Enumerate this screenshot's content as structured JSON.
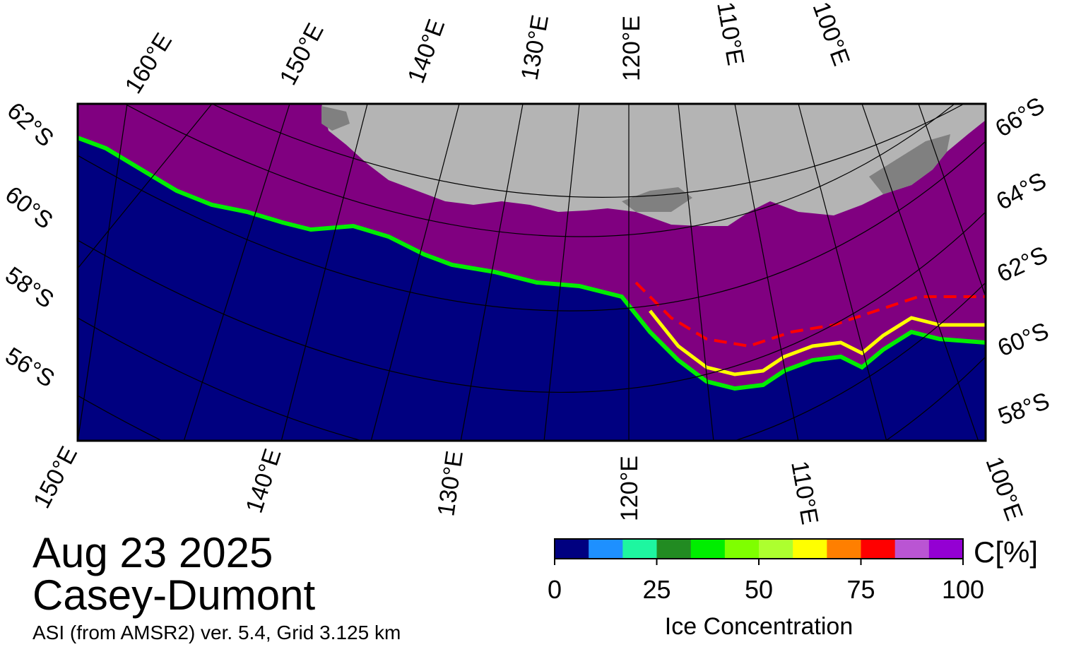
{
  "map": {
    "date": "Aug 23 2025",
    "region": "Casey-Dumont",
    "product": "ASI (from AMSR2) ver. 5.4,  Grid 3.125 km",
    "top_lon_labels": [
      "160°E",
      "150°E",
      "140°E",
      "130°E",
      "120°E",
      "110°E",
      "100°E"
    ],
    "bottom_lon_labels": [
      "150°E",
      "140°E",
      "130°E",
      "120°E",
      "110°E",
      "100°E"
    ],
    "left_lat_labels": [
      "62°S",
      "60°S",
      "58°S",
      "56°S"
    ],
    "right_lat_labels": [
      "66°S",
      "64°S",
      "62°S",
      "60°S",
      "58°S"
    ],
    "colors": {
      "ocean": "#000080",
      "land": "#b4b4b4",
      "ice_shelf": "#808080",
      "pack_ice": "#800080"
    }
  },
  "colorbar": {
    "title": "Ice Concentration",
    "unit": "C[%]",
    "ticks": [
      "0",
      "25",
      "50",
      "75",
      "100"
    ],
    "colors": [
      "#000080",
      "#1e90ff",
      "#1ef6a0",
      "#228b22",
      "#00ee00",
      "#7fff00",
      "#adff2f",
      "#ffff00",
      "#ff7f00",
      "#ff0000",
      "#ba55d3",
      "#9400d3"
    ]
  }
}
